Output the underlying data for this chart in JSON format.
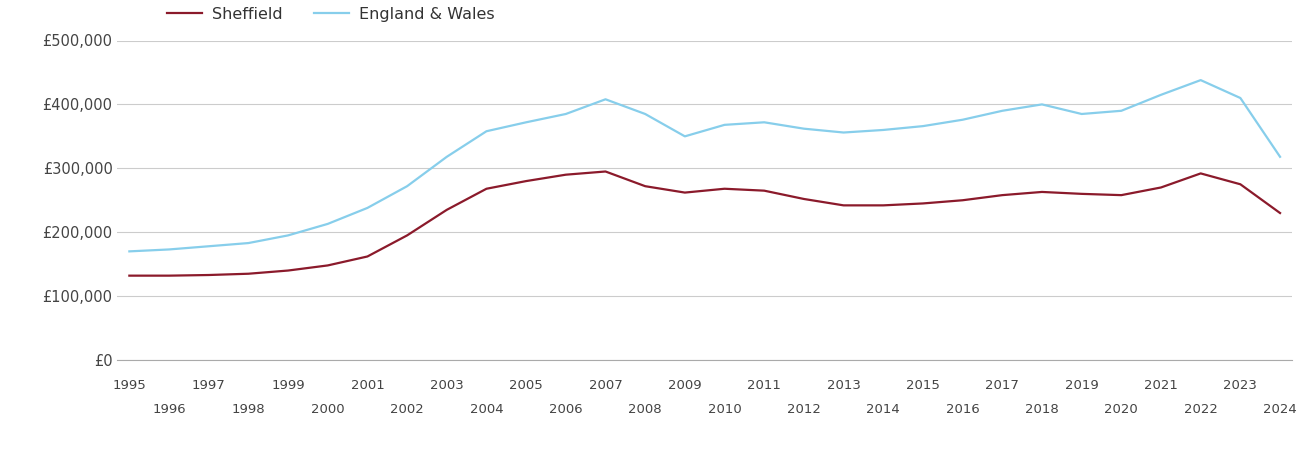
{
  "years": [
    1995,
    1996,
    1997,
    1998,
    1999,
    2000,
    2001,
    2002,
    2003,
    2004,
    2005,
    2006,
    2007,
    2008,
    2009,
    2010,
    2011,
    2012,
    2013,
    2014,
    2015,
    2016,
    2017,
    2018,
    2019,
    2020,
    2021,
    2022,
    2023,
    2024
  ],
  "sheffield": [
    132000,
    132000,
    133000,
    135000,
    140000,
    148000,
    162000,
    195000,
    235000,
    268000,
    280000,
    290000,
    295000,
    272000,
    262000,
    268000,
    265000,
    252000,
    242000,
    242000,
    245000,
    250000,
    258000,
    263000,
    260000,
    258000,
    270000,
    292000,
    275000,
    230000
  ],
  "england_wales": [
    170000,
    173000,
    178000,
    183000,
    195000,
    213000,
    238000,
    272000,
    318000,
    358000,
    372000,
    385000,
    408000,
    385000,
    350000,
    368000,
    372000,
    362000,
    356000,
    360000,
    366000,
    376000,
    390000,
    400000,
    385000,
    390000,
    415000,
    438000,
    410000,
    318000
  ],
  "sheffield_color": "#8B1A2B",
  "england_wales_color": "#87CEEB",
  "background_color": "#ffffff",
  "grid_color": "#cccccc",
  "ylim": [
    0,
    500000
  ],
  "yticks": [
    0,
    100000,
    200000,
    300000,
    400000,
    500000
  ],
  "ytick_labels": [
    "£0",
    "£100,000",
    "£200,000",
    "£300,000",
    "£400,000",
    "£500,000"
  ],
  "legend_sheffield": "Sheffield",
  "legend_england_wales": "England & Wales",
  "line_width": 1.6
}
